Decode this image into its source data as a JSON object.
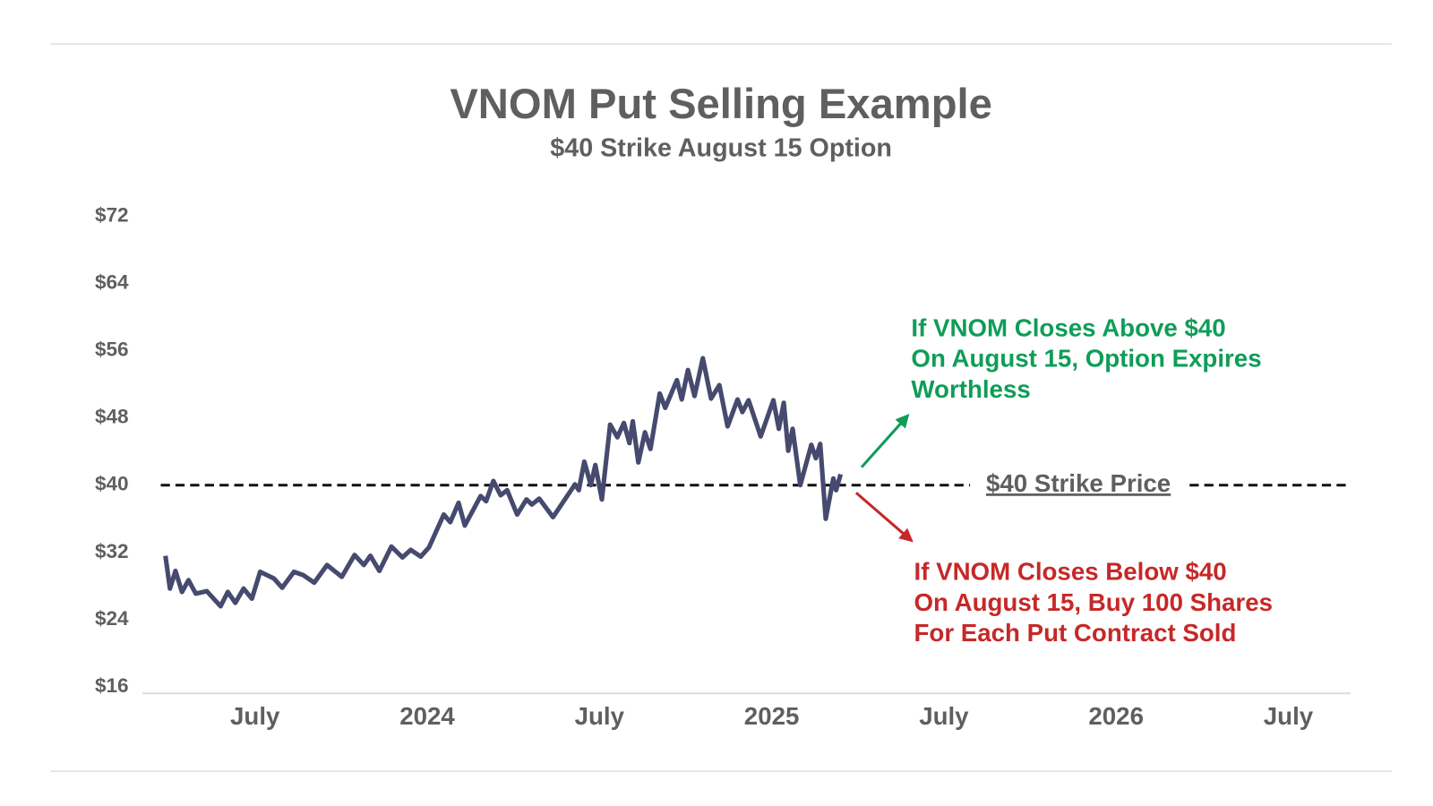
{
  "chart_data": {
    "type": "line",
    "title": "VNOM Put Selling Example",
    "subtitle": "$40 Strike August 15 Option",
    "color": "#454a6e",
    "x": [
      2023.24,
      2023.253,
      2023.269,
      2023.288,
      2023.307,
      2023.328,
      2023.36,
      2023.4,
      2023.421,
      2023.443,
      2023.467,
      2023.491,
      2023.515,
      2023.555,
      2023.579,
      2023.613,
      2023.64,
      2023.672,
      2023.709,
      2023.752,
      2023.789,
      2023.816,
      2023.835,
      2023.861,
      2023.896,
      2023.928,
      2023.952,
      2023.981,
      2024.005,
      2024.048,
      2024.067,
      2024.091,
      2024.109,
      2024.155,
      2024.171,
      2024.192,
      2024.213,
      2024.232,
      2024.261,
      2024.288,
      2024.304,
      2024.325,
      2024.365,
      2024.429,
      2024.44,
      2024.456,
      2024.475,
      2024.488,
      2024.507,
      2024.531,
      2024.552,
      2024.571,
      2024.587,
      2024.597,
      2024.613,
      2024.632,
      2024.648,
      2024.675,
      2024.691,
      2024.725,
      2024.739,
      2024.757,
      2024.776,
      2024.8,
      2024.824,
      2024.848,
      2024.872,
      2024.901,
      2024.915,
      2024.933,
      2024.968,
      2025.005,
      2025.021,
      2025.035,
      2025.048,
      2025.061,
      2025.083,
      2025.115,
      2025.128,
      2025.141,
      2025.157,
      2025.179,
      2025.187,
      2025.2
    ],
    "values": [
      31.6,
      27.7,
      29.8,
      27.3,
      28.7,
      27.1,
      27.4,
      25.6,
      27.3,
      26.0,
      27.7,
      26.5,
      29.7,
      28.9,
      27.8,
      29.7,
      29.3,
      28.4,
      30.5,
      29.1,
      31.7,
      30.5,
      31.6,
      29.8,
      32.7,
      31.4,
      32.3,
      31.5,
      32.6,
      36.5,
      35.6,
      37.9,
      35.2,
      38.7,
      38.1,
      40.5,
      38.8,
      39.4,
      36.5,
      38.3,
      37.7,
      38.4,
      36.2,
      40.1,
      39.4,
      42.8,
      40.0,
      42.4,
      38.3,
      47.2,
      45.7,
      47.4,
      45.0,
      47.6,
      42.7,
      46.3,
      44.3,
      50.9,
      49.2,
      52.5,
      50.2,
      53.7,
      50.6,
      55.1,
      50.3,
      51.9,
      47.0,
      50.2,
      48.7,
      50.1,
      45.8,
      50.1,
      46.7,
      49.8,
      44.1,
      46.7,
      40.0,
      44.8,
      43.2,
      44.9,
      36.0,
      40.8,
      39.4,
      41.3
    ],
    "xlim": [
      2023.173,
      2026.68
    ],
    "xticks": [
      {
        "value": 2023.5,
        "label": "July"
      },
      2024,
      {
        "value": 2024.5,
        "label": "July"
      },
      2025,
      {
        "value": 2025.5,
        "label": "July"
      },
      2026,
      {
        "value": 2026.5,
        "label": "July"
      }
    ],
    "ylim": [
      16,
      72
    ],
    "yticks": [
      {
        "value": 16,
        "label": "$16"
      },
      {
        "value": 24,
        "label": "$24"
      },
      {
        "value": 32,
        "label": "$32"
      },
      {
        "value": 40,
        "label": "$40"
      },
      {
        "value": 48,
        "label": "$48"
      },
      {
        "value": 56,
        "label": "$56"
      },
      {
        "value": 64,
        "label": "$64"
      },
      {
        "value": 72,
        "label": "$72"
      }
    ],
    "grid": false,
    "reference_line": {
      "value": 40,
      "label": "$40 Strike Price"
    },
    "annotations": [
      {
        "lines": [
          "If VNOM Closes Above $40",
          "On August 15, Option Expires",
          "Worthless"
        ],
        "color": "#0f9d58"
      },
      {
        "lines": [
          "If VNOM Closes Below $40",
          "On August 15, Buy 100 Shares",
          "For Each Put Contract Sold"
        ],
        "color": "#c62828"
      }
    ]
  }
}
